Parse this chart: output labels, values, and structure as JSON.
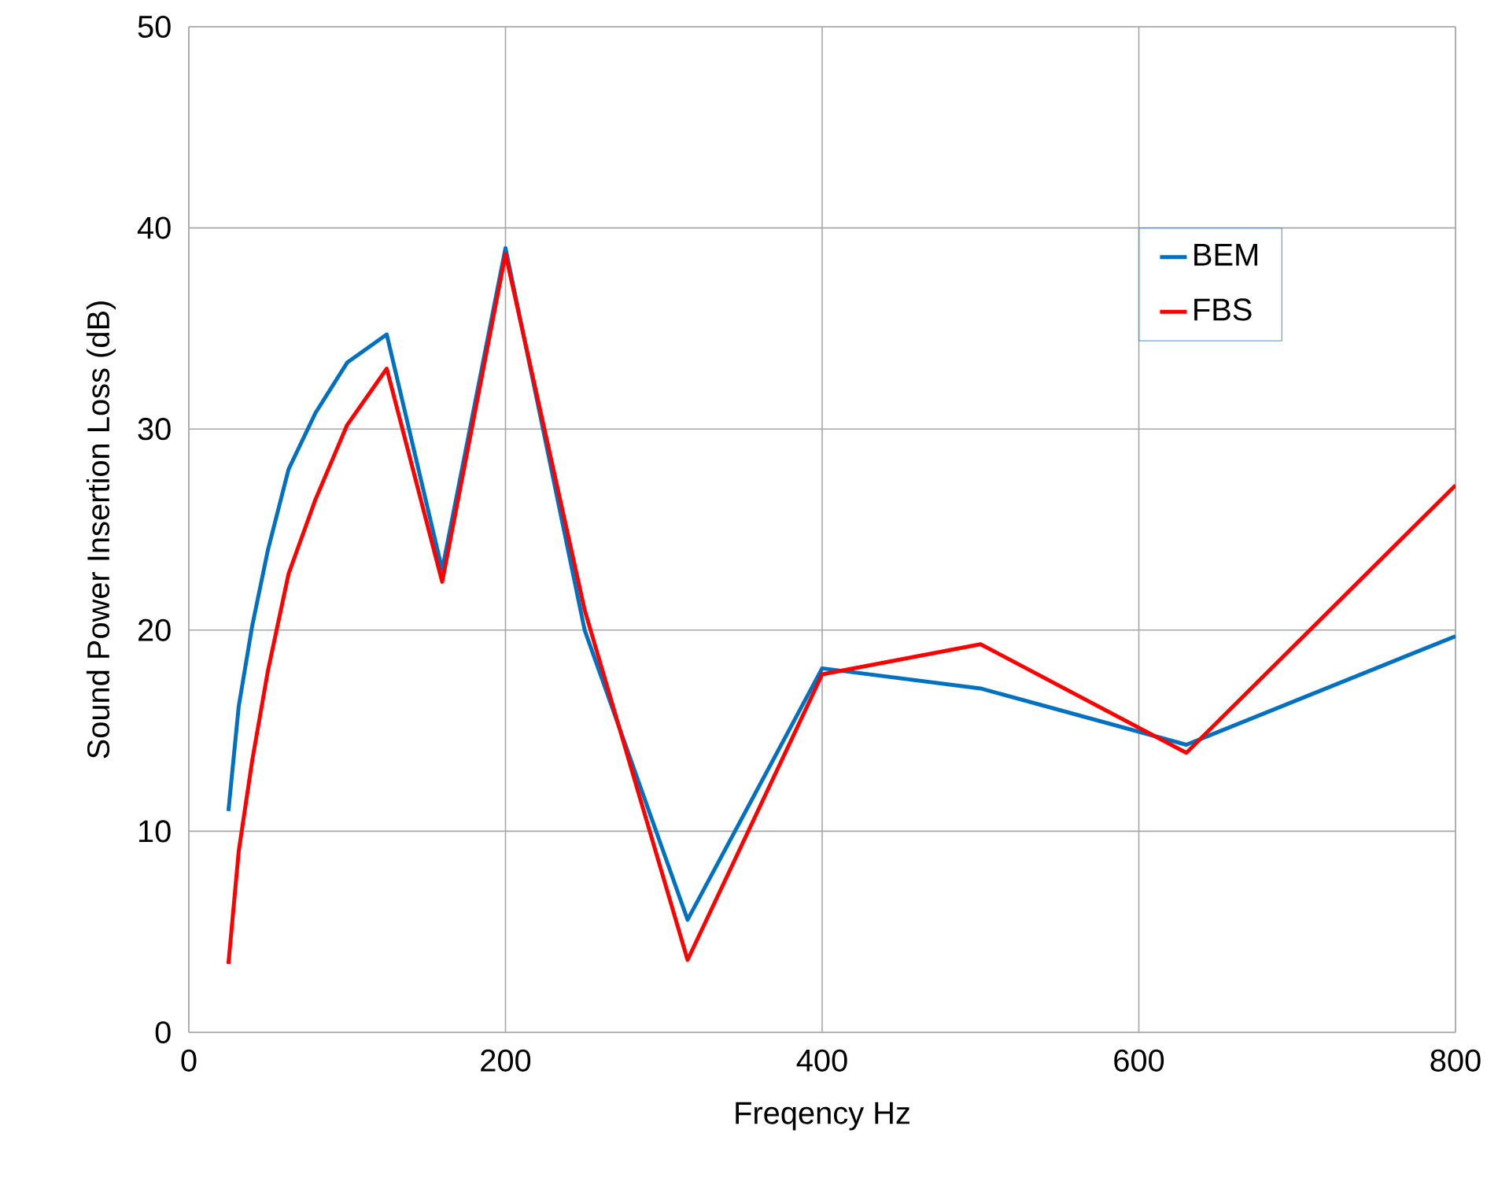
{
  "chart_data": {
    "type": "line",
    "xlabel": "Freqency Hz",
    "ylabel": "Sound Power Insertion Loss (dB)",
    "xlim": [
      0,
      800
    ],
    "xticks": [
      0,
      200,
      400,
      600,
      800
    ],
    "ylim": [
      0,
      50
    ],
    "yticks": [
      0,
      10,
      20,
      30,
      40,
      50
    ],
    "x": [
      25,
      31.5,
      40,
      50,
      63,
      80,
      100,
      125,
      160,
      200,
      250,
      315,
      400,
      500,
      630,
      800
    ],
    "series": [
      {
        "name": "BEM",
        "color": "#0070c0",
        "values": [
          11.0,
          16.2,
          20.2,
          24.0,
          28.0,
          30.8,
          33.3,
          34.7,
          23.0,
          39.0,
          20.0,
          5.6,
          18.1,
          17.1,
          14.3,
          19.7
        ]
      },
      {
        "name": "FBS",
        "color": "#ff0000",
        "values": [
          3.4,
          9.0,
          13.5,
          18.0,
          22.8,
          26.5,
          30.2,
          33.0,
          22.4,
          38.7,
          21.0,
          3.6,
          17.8,
          19.3,
          13.9,
          27.2
        ]
      }
    ],
    "grid": true,
    "legend": "top right",
    "marker": "none",
    "line_style": "solid"
  }
}
